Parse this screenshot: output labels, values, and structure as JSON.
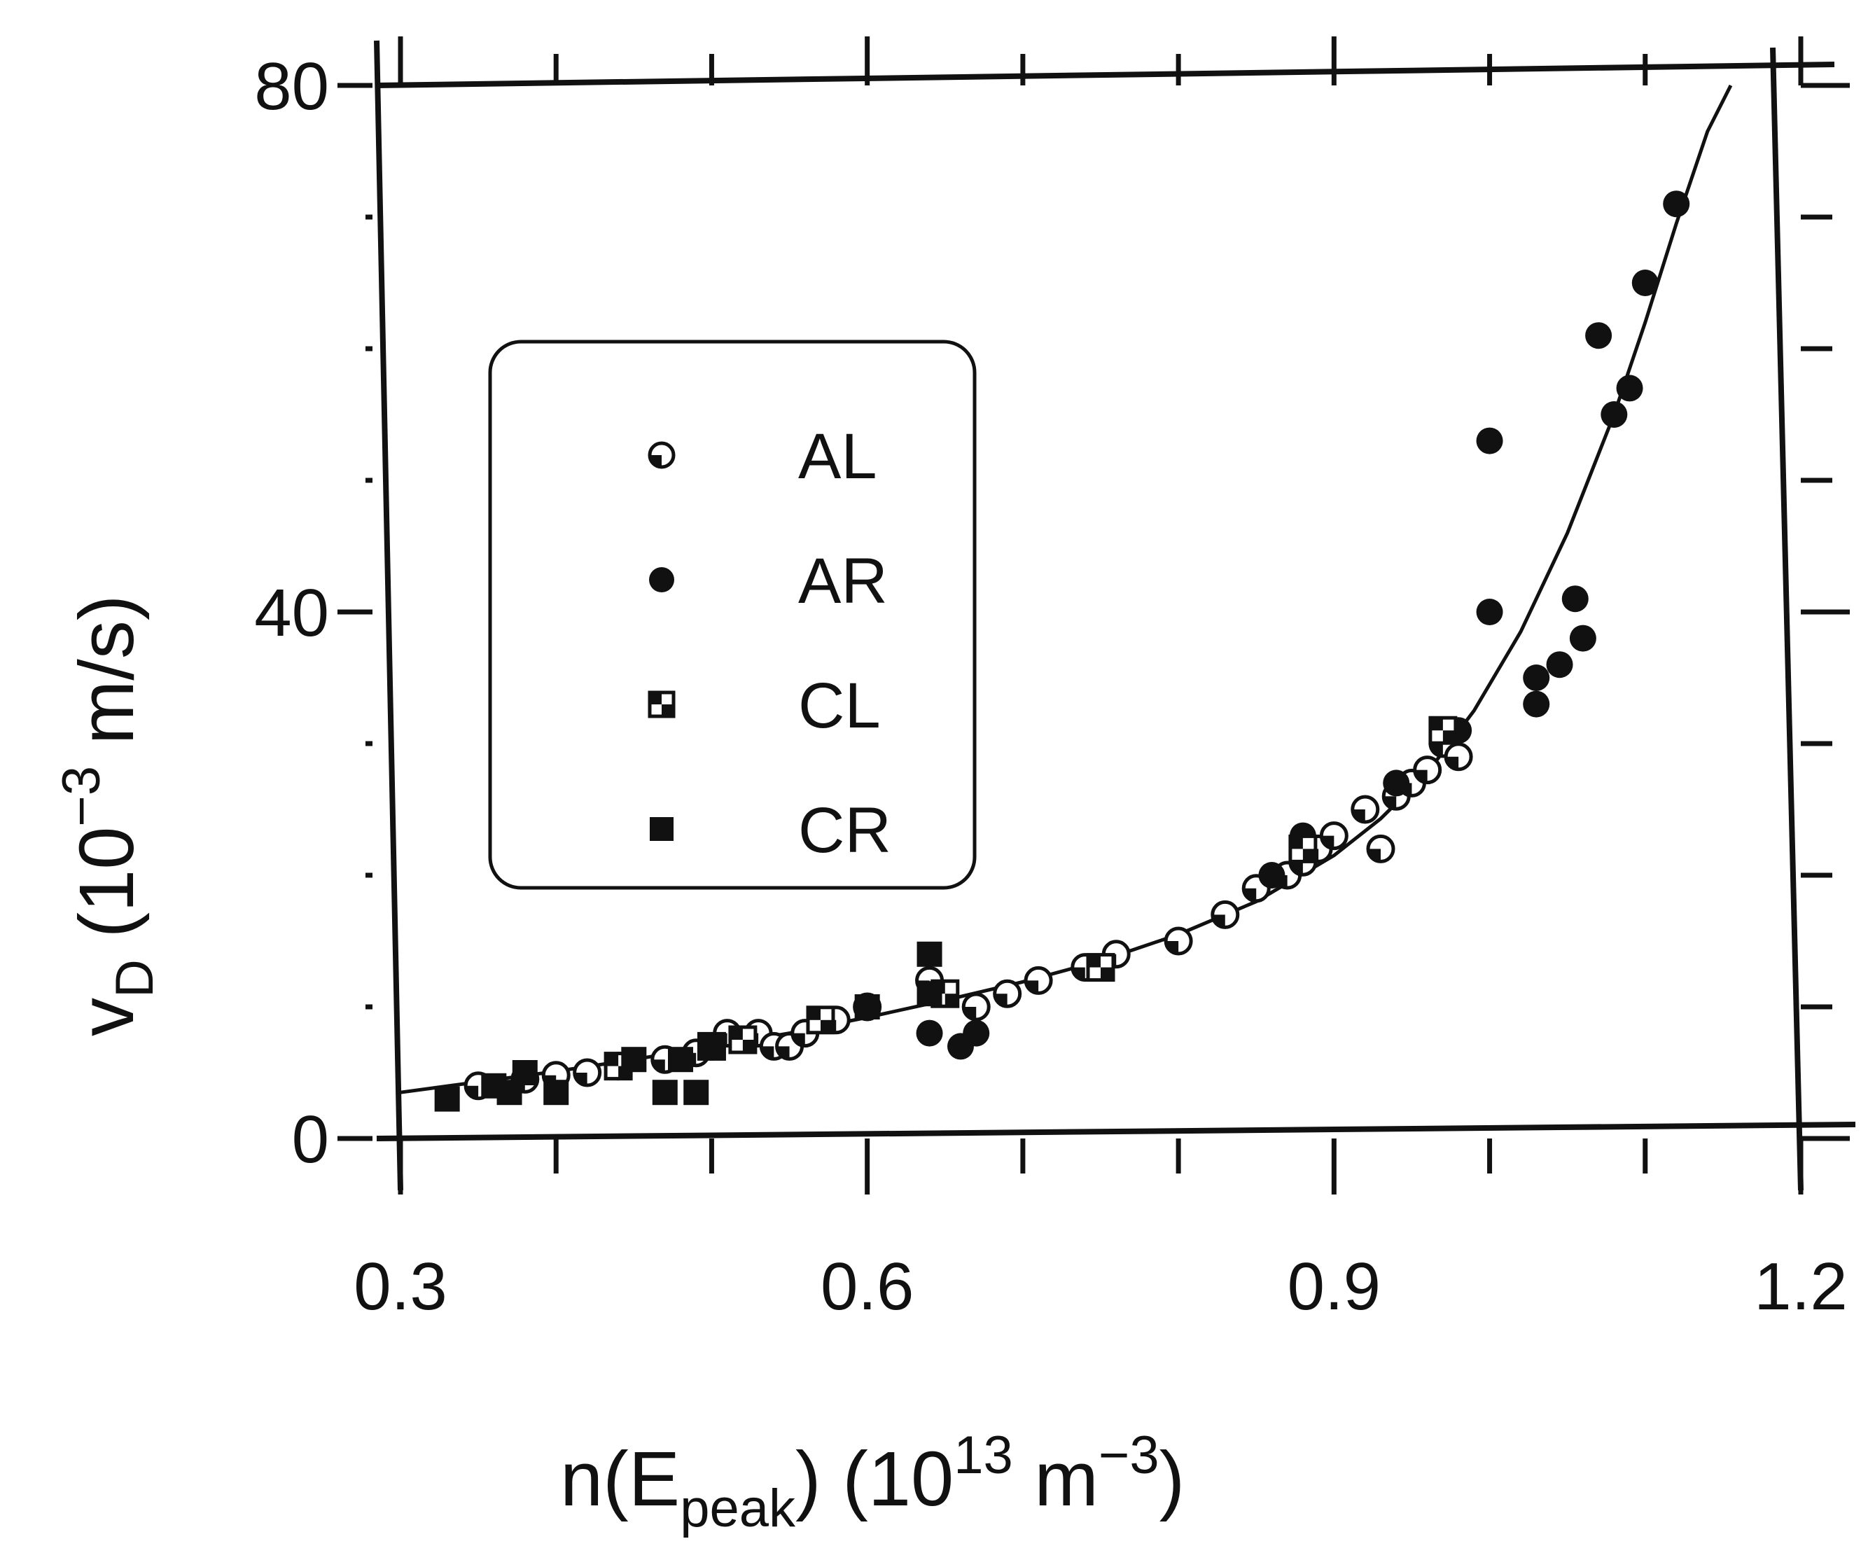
{
  "colors": {
    "ink": "#111111",
    "paper": "#ffffff"
  },
  "axes": {
    "y_title": {
      "sym": "v",
      "sub": "D",
      "open": "  (10",
      "sup": "−3",
      "unit": " m/s)"
    },
    "x_title": {
      "pre": "n(E",
      "sub": "peak",
      "mid": ")  (10",
      "sup1": "13",
      "m": " m",
      "sup2": "−3",
      "close": ")"
    }
  },
  "chart_data": {
    "type": "scatter",
    "title": "",
    "xlabel": "n(E_peak) (10^13 m^-3)",
    "ylabel": "v_D (10^-3 m/s)",
    "xlim": [
      0.3,
      1.2
    ],
    "ylim": [
      0,
      80
    ],
    "x_ticks": [
      "0.3",
      "0.6",
      "0.9",
      "1.2"
    ],
    "y_ticks": [
      "0",
      "40",
      "80"
    ],
    "grid": false,
    "legend_position": "upper-left inset",
    "legend": [
      "AL",
      "AR",
      "CL",
      "CR"
    ],
    "series": [
      {
        "name": "AL",
        "marker": "open-circle",
        "x": [
          0.35,
          0.38,
          0.4,
          0.42,
          0.44,
          0.47,
          0.49,
          0.5,
          0.51,
          0.52,
          0.53,
          0.54,
          0.55,
          0.56,
          0.58,
          0.6,
          0.64,
          0.67,
          0.69,
          0.71,
          0.74,
          0.76,
          0.8,
          0.83,
          0.85,
          0.87,
          0.88,
          0.89,
          0.9,
          0.92,
          0.93,
          0.94,
          0.95,
          0.96,
          0.97,
          0.98
        ],
        "y": [
          4,
          4.5,
          4.8,
          5,
          5.5,
          6,
          6.5,
          7,
          8,
          7.5,
          8,
          7,
          7,
          8,
          9,
          10,
          12,
          10,
          11,
          12,
          13,
          14,
          15,
          17,
          19,
          20,
          21,
          22,
          23,
          25,
          22,
          26,
          27,
          28,
          30,
          29
        ]
      },
      {
        "name": "AR",
        "marker": "filled-circle",
        "x": [
          0.64,
          0.66,
          0.67,
          0.86,
          0.88,
          0.94,
          0.98,
          1.0,
          1.0,
          1.03,
          1.03,
          1.045,
          1.055,
          1.06,
          1.07,
          1.08,
          1.09,
          1.1,
          1.12
        ],
        "y": [
          8,
          7,
          8,
          20,
          23,
          27,
          31,
          40,
          53,
          33,
          35,
          36,
          41,
          38,
          61,
          55,
          57,
          65,
          71
        ]
      },
      {
        "name": "CL",
        "marker": "half-square",
        "x": [
          0.44,
          0.5,
          0.52,
          0.57,
          0.65,
          0.75,
          0.88,
          0.97
        ],
        "y": [
          5.5,
          7,
          7.5,
          9,
          11,
          13,
          22,
          31
        ]
      },
      {
        "name": "CR",
        "marker": "filled-square",
        "x": [
          0.33,
          0.36,
          0.37,
          0.38,
          0.4,
          0.45,
          0.47,
          0.48,
          0.49,
          0.5,
          0.6,
          0.64,
          0.64
        ],
        "y": [
          3,
          4,
          3.5,
          5,
          3.5,
          6,
          3.5,
          6,
          3.5,
          7,
          10,
          11,
          14
        ]
      }
    ],
    "fit_curve": {
      "name": "",
      "x": [
        0.3,
        0.35,
        0.4,
        0.45,
        0.5,
        0.55,
        0.6,
        0.65,
        0.7,
        0.75,
        0.8,
        0.85,
        0.9,
        0.93,
        0.96,
        0.99,
        1.02,
        1.05,
        1.08,
        1.1,
        1.12,
        1.14,
        1.155
      ],
      "y": [
        3.5,
        4.3,
        5.1,
        6.0,
        7.0,
        8.0,
        9.2,
        10.5,
        11.9,
        13.5,
        15.5,
        18.0,
        21.5,
        24.3,
        27.8,
        32.5,
        38.5,
        46.0,
        55.0,
        62.0,
        69.5,
        76.5,
        80
      ]
    }
  }
}
